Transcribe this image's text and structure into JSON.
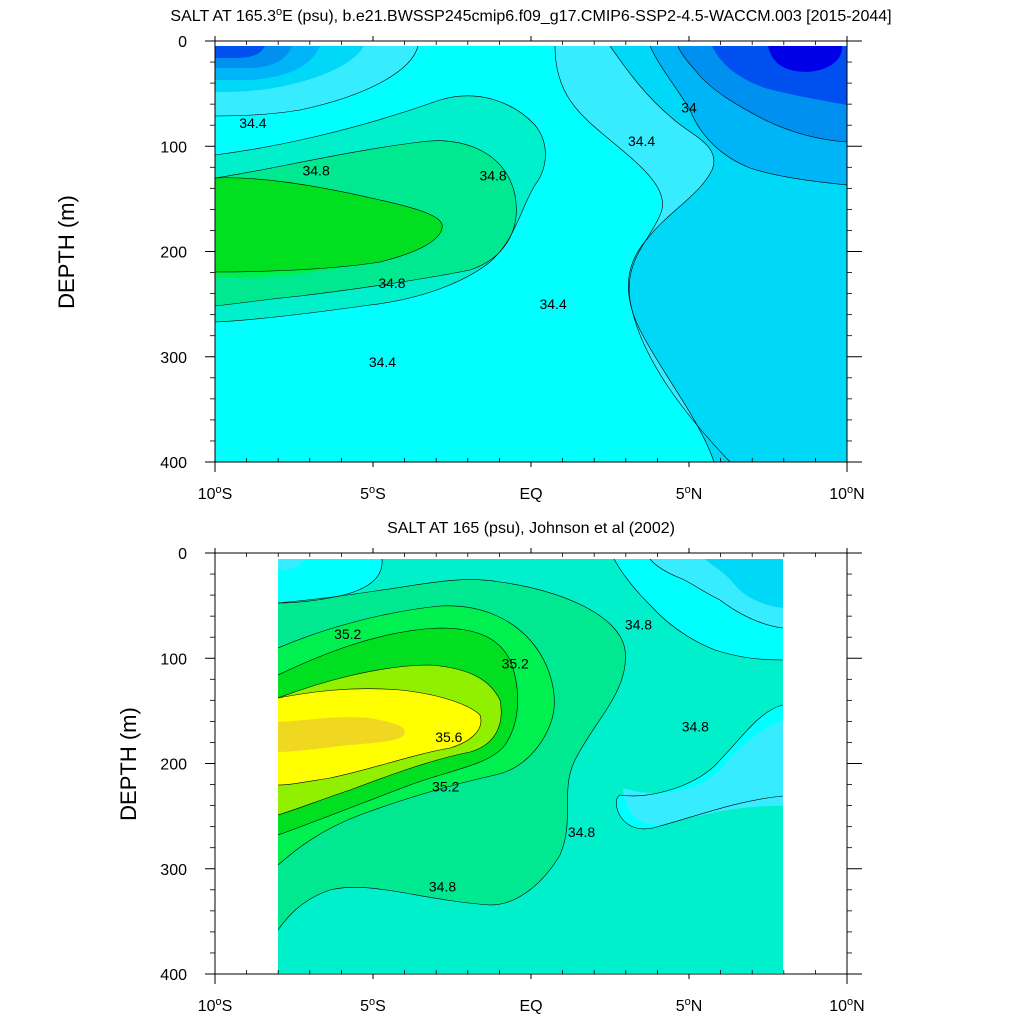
{
  "chart_data": [
    {
      "type": "contour",
      "title_prefix": "SALT AT 165.3",
      "title_sup": "o",
      "title_suffix": "E (psu), b.e21.BWSSP245cmip6.f09_g17.CMIP6-SSP2-4.5-WACCM.003 [2015-2044]",
      "ylabel": "DEPTH (m)",
      "xlim": [
        -10,
        10
      ],
      "ylim": [
        0,
        400
      ],
      "y_inverted": true,
      "x_ticks": [
        {
          "label": "10",
          "sup": "o",
          "suffix": "S",
          "value": -10
        },
        {
          "label": "5",
          "sup": "o",
          "suffix": "S",
          "value": -5
        },
        {
          "label": "EQ",
          "sup": "",
          "suffix": "",
          "value": 0
        },
        {
          "label": "5",
          "sup": "o",
          "suffix": "N",
          "value": 5
        },
        {
          "label": "10",
          "sup": "o",
          "suffix": "N",
          "value": 10
        }
      ],
      "y_ticks": [
        "0",
        "100",
        "200",
        "300",
        "400"
      ],
      "y_tick_values": [
        0,
        100,
        200,
        300,
        400
      ],
      "data_extent_x": [
        -10,
        10
      ],
      "contour_labels": [
        {
          "text": "34.4",
          "lat": -8.8,
          "depth": 78
        },
        {
          "text": "34.8",
          "lat": -6.8,
          "depth": 123
        },
        {
          "text": "34.8",
          "lat": -1.2,
          "depth": 128
        },
        {
          "text": "34.8",
          "lat": -4.4,
          "depth": 230
        },
        {
          "text": "34.4",
          "lat": -4.7,
          "depth": 305
        },
        {
          "text": "34.4",
          "lat": 0.7,
          "depth": 250
        },
        {
          "text": "34.4",
          "lat": 3.5,
          "depth": 95
        },
        {
          "text": "34",
          "lat": 5.0,
          "depth": 63
        }
      ]
    },
    {
      "type": "contour",
      "title": "SALT AT 165 (psu), Johnson et al (2002)",
      "ylabel": "DEPTH (m)",
      "xlim": [
        -10,
        10
      ],
      "ylim": [
        0,
        400
      ],
      "y_inverted": true,
      "x_ticks": [
        {
          "label": "10",
          "sup": "o",
          "suffix": "S",
          "value": -10
        },
        {
          "label": "5",
          "sup": "o",
          "suffix": "S",
          "value": -5
        },
        {
          "label": "EQ",
          "sup": "",
          "suffix": "",
          "value": 0
        },
        {
          "label": "5",
          "sup": "o",
          "suffix": "N",
          "value": 5
        },
        {
          "label": "10",
          "sup": "o",
          "suffix": "N",
          "value": 10
        }
      ],
      "y_ticks": [
        "0",
        "100",
        "200",
        "300",
        "400"
      ],
      "y_tick_values": [
        0,
        100,
        200,
        300,
        400
      ],
      "data_extent_x": [
        -8,
        8
      ],
      "contour_labels": [
        {
          "text": "35.2",
          "lat": -5.8,
          "depth": 77
        },
        {
          "text": "35.2",
          "lat": -0.5,
          "depth": 105
        },
        {
          "text": "35.6",
          "lat": -2.6,
          "depth": 175
        },
        {
          "text": "35.2",
          "lat": -2.7,
          "depth": 222
        },
        {
          "text": "34.8",
          "lat": 3.4,
          "depth": 68
        },
        {
          "text": "34.8",
          "lat": 5.2,
          "depth": 165
        },
        {
          "text": "34.8",
          "lat": 1.6,
          "depth": 265
        },
        {
          "text": "34.8",
          "lat": -2.8,
          "depth": 317
        }
      ]
    }
  ],
  "colors": {
    "s33.6": "#0000e8",
    "s33.8": "#0050f0",
    "s34.0": "#0090f0",
    "s34.2": "#00b4f8",
    "s34.4": "#00d8f8",
    "s34.6": "#38ecff",
    "s34.8": "#00ffff",
    "s35.0": "#00f0cc",
    "s35.2": "#00e890",
    "s35.4": "#00f050",
    "s35.6": "#00e020",
    "s35.8": "#90f000",
    "s36.0": "#ffff00",
    "s36.2": "#f0d820"
  }
}
